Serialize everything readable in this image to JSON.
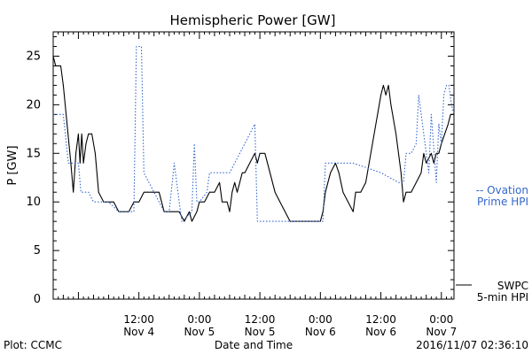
{
  "chart_data": {
    "type": "line",
    "title": "Hemispheric Power [GW]",
    "xlabel": "Date and Time",
    "ylabel": "P [GW]",
    "ylim": [
      0,
      27.5
    ],
    "yticks": [
      0,
      5,
      10,
      15,
      20,
      25
    ],
    "xlim": [
      "2016-11-03 19:00",
      "2016-11-07 02:30"
    ],
    "xticks": [
      {
        "t": "2016-11-04 12:00",
        "line1": "12:00",
        "line2": "Nov 4"
      },
      {
        "t": "2016-11-05 00:00",
        "line1": "0:00",
        "line2": "Nov 5"
      },
      {
        "t": "2016-11-05 12:00",
        "line1": "12:00",
        "line2": "Nov 5"
      },
      {
        "t": "2016-11-06 00:00",
        "line1": "0:00",
        "line2": "Nov 6"
      },
      {
        "t": "2016-11-06 12:00",
        "line1": "12:00",
        "line2": "Nov 6"
      },
      {
        "t": "2016-11-07 00:00",
        "line1": "0:00",
        "line2": "Nov 7"
      }
    ],
    "series": [
      {
        "name": "SWPC 5-min HPI",
        "line1": "SWPC",
        "line2": "5-min HPI",
        "color": "#000000",
        "style": "solid",
        "points": [
          [
            "2016-11-03 19:00",
            25
          ],
          [
            "2016-11-03 19:30",
            24
          ],
          [
            "2016-11-03 20:30",
            24
          ],
          [
            "2016-11-03 21:00",
            22
          ],
          [
            "2016-11-03 22:30",
            14
          ],
          [
            "2016-11-03 23:00",
            11
          ],
          [
            "2016-11-03 23:30",
            15
          ],
          [
            "2016-11-04 00:00",
            17
          ],
          [
            "2016-11-04 00:20",
            14
          ],
          [
            "2016-11-04 00:40",
            17
          ],
          [
            "2016-11-04 01:00",
            14
          ],
          [
            "2016-11-04 01:30",
            16
          ],
          [
            "2016-11-04 02:00",
            17
          ],
          [
            "2016-11-04 02:40",
            17
          ],
          [
            "2016-11-04 03:20",
            15
          ],
          [
            "2016-11-04 04:00",
            11
          ],
          [
            "2016-11-04 05:00",
            10
          ],
          [
            "2016-11-04 06:00",
            10
          ],
          [
            "2016-11-04 07:00",
            10
          ],
          [
            "2016-11-04 08:00",
            9
          ],
          [
            "2016-11-04 10:00",
            9
          ],
          [
            "2016-11-04 11:00",
            10
          ],
          [
            "2016-11-04 12:00",
            10
          ],
          [
            "2016-11-04 13:00",
            11
          ],
          [
            "2016-11-04 16:00",
            11
          ],
          [
            "2016-11-04 17:00",
            9
          ],
          [
            "2016-11-04 19:00",
            9
          ],
          [
            "2016-11-04 20:00",
            9
          ],
          [
            "2016-11-04 21:00",
            8
          ],
          [
            "2016-11-04 22:00",
            9
          ],
          [
            "2016-11-04 22:30",
            8
          ],
          [
            "2016-11-04 23:30",
            9
          ],
          [
            "2016-11-05 00:00",
            10
          ],
          [
            "2016-11-05 01:00",
            10
          ],
          [
            "2016-11-05 02:00",
            11
          ],
          [
            "2016-11-05 03:00",
            11
          ],
          [
            "2016-11-05 04:00",
            12
          ],
          [
            "2016-11-05 04:30",
            10
          ],
          [
            "2016-11-05 05:30",
            10
          ],
          [
            "2016-11-05 06:00",
            9
          ],
          [
            "2016-11-05 06:30",
            11
          ],
          [
            "2016-11-05 07:00",
            12
          ],
          [
            "2016-11-05 07:30",
            11
          ],
          [
            "2016-11-05 08:00",
            12
          ],
          [
            "2016-11-05 08:30",
            13
          ],
          [
            "2016-11-05 09:00",
            13
          ],
          [
            "2016-11-05 10:00",
            14
          ],
          [
            "2016-11-05 11:00",
            15
          ],
          [
            "2016-11-05 11:30",
            14
          ],
          [
            "2016-11-05 12:00",
            15
          ],
          [
            "2016-11-05 13:00",
            15
          ],
          [
            "2016-11-05 14:00",
            13
          ],
          [
            "2016-11-05 15:00",
            11
          ],
          [
            "2016-11-05 16:00",
            10
          ],
          [
            "2016-11-05 17:00",
            9
          ],
          [
            "2016-11-05 18:00",
            8
          ],
          [
            "2016-11-05 20:00",
            8
          ],
          [
            "2016-11-05 22:00",
            8
          ],
          [
            "2016-11-06 00:00",
            8
          ],
          [
            "2016-11-06 00:30",
            9
          ],
          [
            "2016-11-06 01:00",
            11
          ],
          [
            "2016-11-06 02:00",
            13
          ],
          [
            "2016-11-06 03:00",
            14
          ],
          [
            "2016-11-06 03:40",
            13
          ],
          [
            "2016-11-06 04:30",
            11
          ],
          [
            "2016-11-06 05:30",
            10
          ],
          [
            "2016-11-06 06:30",
            9
          ],
          [
            "2016-11-06 07:00",
            11
          ],
          [
            "2016-11-06 08:00",
            11
          ],
          [
            "2016-11-06 09:00",
            12
          ],
          [
            "2016-11-06 10:00",
            15
          ],
          [
            "2016-11-06 11:00",
            18
          ],
          [
            "2016-11-06 12:00",
            21
          ],
          [
            "2016-11-06 12:30",
            22
          ],
          [
            "2016-11-06 13:00",
            21
          ],
          [
            "2016-11-06 13:30",
            22
          ],
          [
            "2016-11-06 14:00",
            20
          ],
          [
            "2016-11-06 15:00",
            17
          ],
          [
            "2016-11-06 16:00",
            13
          ],
          [
            "2016-11-06 16:30",
            10
          ],
          [
            "2016-11-06 17:00",
            11
          ],
          [
            "2016-11-06 18:00",
            11
          ],
          [
            "2016-11-06 19:00",
            12
          ],
          [
            "2016-11-06 20:00",
            13
          ],
          [
            "2016-11-06 20:30",
            15
          ],
          [
            "2016-11-06 21:00",
            14
          ],
          [
            "2016-11-06 22:00",
            15
          ],
          [
            "2016-11-06 22:30",
            14
          ],
          [
            "2016-11-06 23:00",
            15
          ],
          [
            "2016-11-06 23:30",
            15
          ],
          [
            "2016-11-07 00:00",
            16
          ],
          [
            "2016-11-07 00:40",
            17
          ],
          [
            "2016-11-07 01:20",
            18
          ],
          [
            "2016-11-07 01:50",
            19
          ],
          [
            "2016-11-07 02:30",
            19
          ]
        ]
      },
      {
        "name": "Ovation Prime HPI",
        "line1": "-- Ovation",
        "line2": "Prime HPI",
        "color": "#3366cc",
        "style": "dotted",
        "points": [
          [
            "2016-11-03 19:00",
            19
          ],
          [
            "2016-11-03 21:00",
            19
          ],
          [
            "2016-11-03 22:00",
            14
          ],
          [
            "2016-11-04 00:00",
            14
          ],
          [
            "2016-11-04 00:30",
            11
          ],
          [
            "2016-11-04 02:00",
            11
          ],
          [
            "2016-11-04 03:00",
            10
          ],
          [
            "2016-11-04 06:00",
            10
          ],
          [
            "2016-11-04 08:00",
            9
          ],
          [
            "2016-11-04 11:00",
            9
          ],
          [
            "2016-11-04 11:30",
            26
          ],
          [
            "2016-11-04 12:30",
            26
          ],
          [
            "2016-11-04 13:00",
            13
          ],
          [
            "2016-11-04 14:00",
            12
          ],
          [
            "2016-11-04 15:00",
            11
          ],
          [
            "2016-11-04 16:00",
            10
          ],
          [
            "2016-11-04 17:00",
            9
          ],
          [
            "2016-11-04 18:00",
            9
          ],
          [
            "2016-11-04 19:00",
            14
          ],
          [
            "2016-11-04 19:30",
            12
          ],
          [
            "2016-11-04 20:30",
            8
          ],
          [
            "2016-11-04 22:30",
            9
          ],
          [
            "2016-11-04 23:00",
            16
          ],
          [
            "2016-11-04 23:30",
            10
          ],
          [
            "2016-11-05 00:00",
            10
          ],
          [
            "2016-11-05 01:30",
            11
          ],
          [
            "2016-11-05 02:00",
            13
          ],
          [
            "2016-11-05 06:00",
            13
          ],
          [
            "2016-11-05 07:00",
            14
          ],
          [
            "2016-11-05 08:00",
            15
          ],
          [
            "2016-11-05 10:00",
            17
          ],
          [
            "2016-11-05 11:00",
            18
          ],
          [
            "2016-11-05 11:30",
            8
          ],
          [
            "2016-11-05 18:00",
            8
          ],
          [
            "2016-11-05 21:00",
            8
          ],
          [
            "2016-11-05 23:00",
            8
          ],
          [
            "2016-11-06 00:00",
            8
          ],
          [
            "2016-11-06 00:30",
            8
          ],
          [
            "2016-11-06 01:00",
            14
          ],
          [
            "2016-11-06 06:30",
            14
          ],
          [
            "2016-11-06 12:00",
            13
          ],
          [
            "2016-11-06 15:30",
            12
          ],
          [
            "2016-11-06 16:30",
            12
          ],
          [
            "2016-11-06 17:00",
            15
          ],
          [
            "2016-11-06 18:00",
            15
          ],
          [
            "2016-11-06 19:00",
            16
          ],
          [
            "2016-11-06 19:30",
            21
          ],
          [
            "2016-11-06 20:30",
            17
          ],
          [
            "2016-11-06 21:30",
            13
          ],
          [
            "2016-11-06 22:00",
            19
          ],
          [
            "2016-11-06 23:00",
            12
          ],
          [
            "2016-11-06 23:30",
            18
          ],
          [
            "2016-11-07 00:00",
            16
          ],
          [
            "2016-11-07 00:30",
            21
          ],
          [
            "2016-11-07 01:00",
            22
          ],
          [
            "2016-11-07 01:30",
            22
          ],
          [
            "2016-11-07 02:00",
            20
          ],
          [
            "2016-11-07 02:30",
            19
          ]
        ]
      }
    ]
  },
  "footer": {
    "plot_credit": "Plot: CCMC",
    "timestamp": "2016/11/07 02:36:10"
  }
}
